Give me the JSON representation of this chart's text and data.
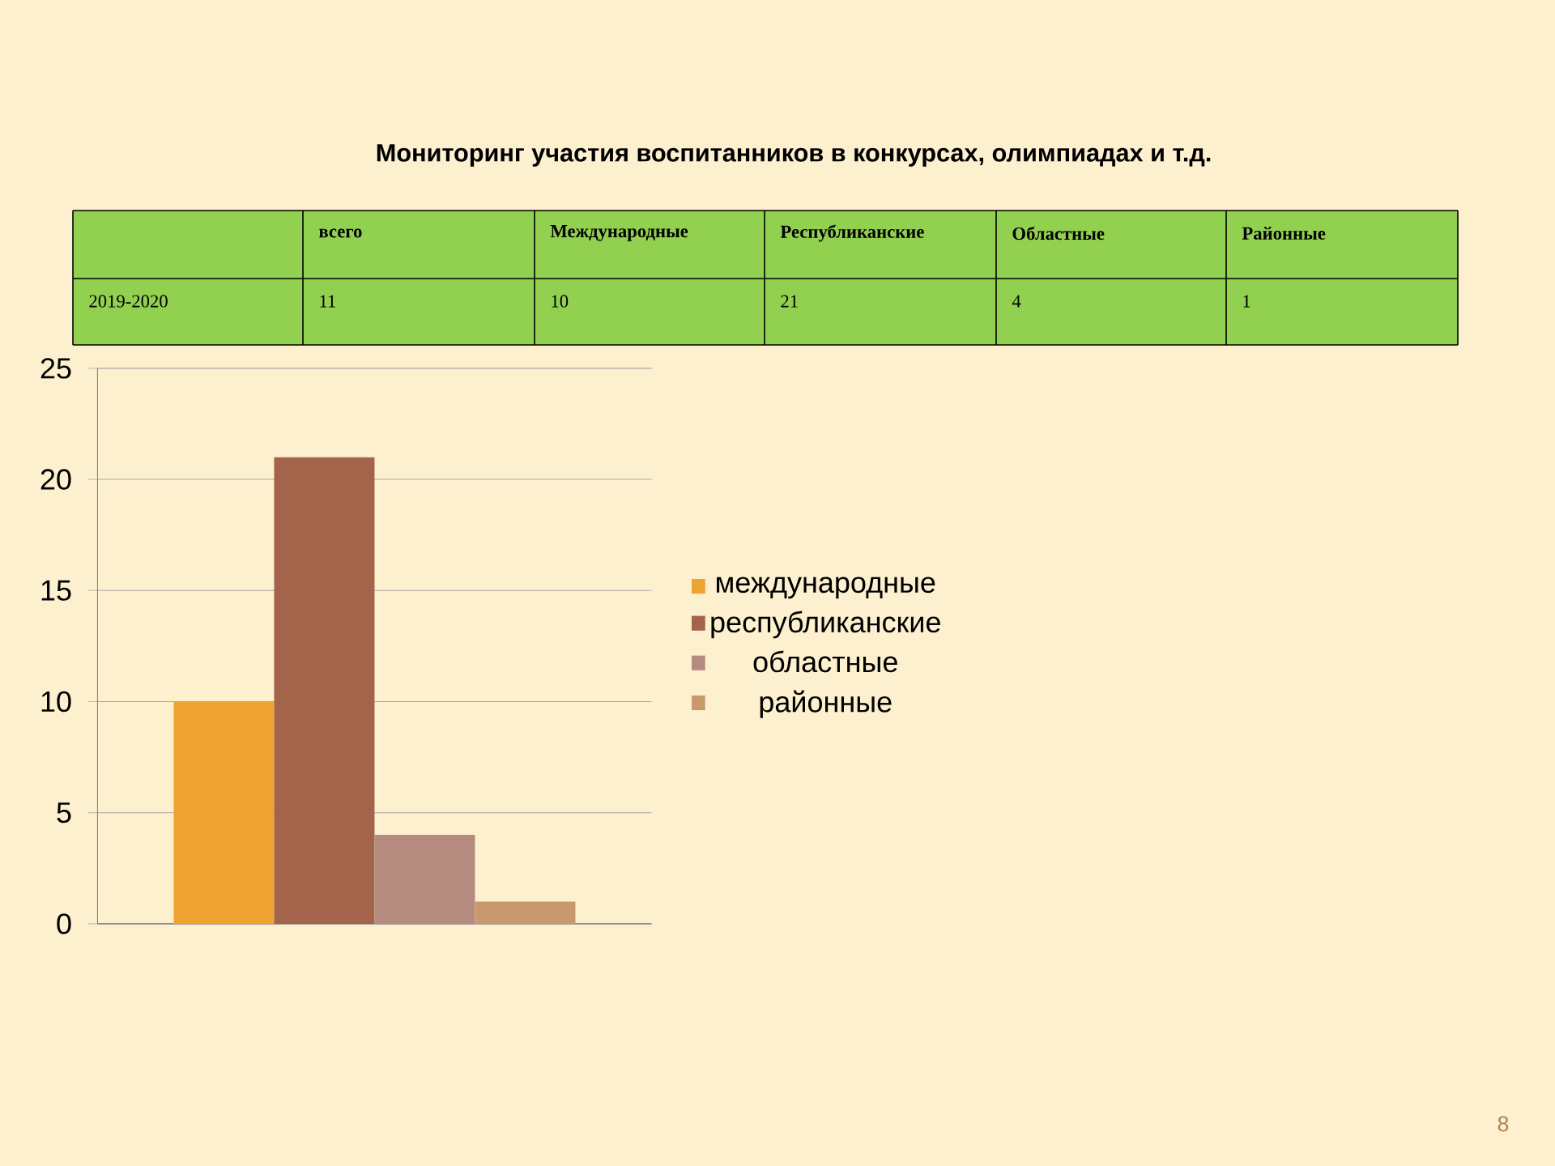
{
  "chart_data": {
    "type": "bar",
    "title": "Мониторинг участия воспитанников в конкурсах, олимпиадах и т.д.",
    "categories": [
      null
    ],
    "series": [
      {
        "name": "международные",
        "color": "#f0a330",
        "values": [
          10
        ]
      },
      {
        "name": "республиканские",
        "color": "#a4644c",
        "values": [
          21
        ]
      },
      {
        "name": "областные",
        "color": "#b58b80",
        "values": [
          4
        ]
      },
      {
        "name": "районные",
        "color": "#c8996d",
        "values": [
          1
        ]
      }
    ],
    "ylim": [
      0,
      25
    ],
    "yticks": [
      0,
      5,
      10,
      15,
      20,
      25
    ],
    "grid": "y",
    "legend": "right",
    "annotations": [
      "всего",
      "Международные",
      "Республиканские",
      "Областные",
      "Районные",
      "2019-2020",
      "11",
      "10",
      "21",
      "4",
      "1",
      "8"
    ]
  }
}
